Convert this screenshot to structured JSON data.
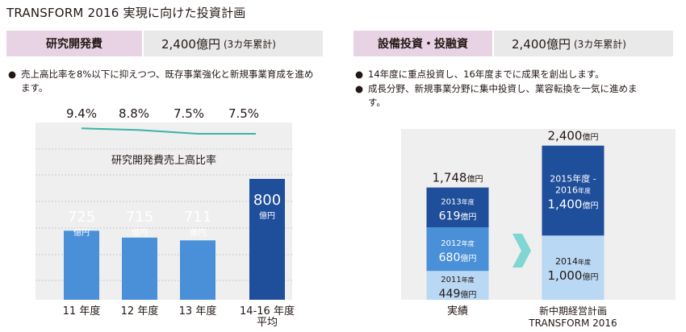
{
  "page_title": "TRANSFORM 2016 実現に向けた投資計画",
  "rd": {
    "label": "研究開発費",
    "value": "2,400億円",
    "value_suffix": "(3カ年累計)",
    "bullets": [
      "売上高比率を8%以下に抑えつつ、既存事業強化と新規事業育成を進めます。"
    ]
  },
  "capex": {
    "label": "設備投資・投融資",
    "value": "2,400億円",
    "value_suffix": "(3カ年累計)",
    "bullets": [
      "14年度に重点投資し、16年度までに成果を創出します。",
      "成長分野、新規事業分野に集中投資し、業容転換を一気に進めます。"
    ]
  },
  "colors": {
    "bar": "#4a90d9",
    "bar_highlight": "#1f4e9a",
    "line": "#3bb3a5",
    "panel_bg": "#efefef",
    "arrow": "#7fd6d2",
    "seg_dark": "#1f4e9a",
    "seg_mid": "#4a90d9",
    "seg_light": "#b8d8f3"
  },
  "chart_data": [
    {
      "type": "bar",
      "title": "研究開発費売上高比率",
      "categories": [
        "11 年度",
        "12 年度",
        "13 年度",
        "14-16 年度\n平均"
      ],
      "values": [
        725,
        715,
        711,
        800
      ],
      "value_unit": "億円",
      "ratio_labels": [
        "9.4%",
        "8.8%",
        "7.5%",
        "7.5%"
      ],
      "ratio_values": [
        9.4,
        8.8,
        7.5,
        7.5
      ],
      "highlight_index": 3
    },
    {
      "type": "bar",
      "stacked": true,
      "categories": [
        "実績",
        "新中期経営計画\nTRANSFORM 2016"
      ],
      "totals": [
        1748,
        2400
      ],
      "total_labels": [
        "1,748",
        "2,400"
      ],
      "total_unit": "億円",
      "unit": "億円",
      "year_suffix": "年度",
      "series": [
        {
          "stack": 0,
          "year": "2011",
          "value": 449,
          "label": "449",
          "color": "light"
        },
        {
          "stack": 0,
          "year": "2012",
          "value": 680,
          "label": "680",
          "color": "mid"
        },
        {
          "stack": 0,
          "year": "2013",
          "value": 619,
          "label": "619",
          "color": "dark"
        },
        {
          "stack": 1,
          "year": "2014",
          "value": 1000,
          "label": "1,000",
          "color": "light"
        },
        {
          "stack": 1,
          "year": "2015年度 -\n2016",
          "value": 1400,
          "label": "1,400",
          "color": "dark"
        }
      ]
    }
  ]
}
